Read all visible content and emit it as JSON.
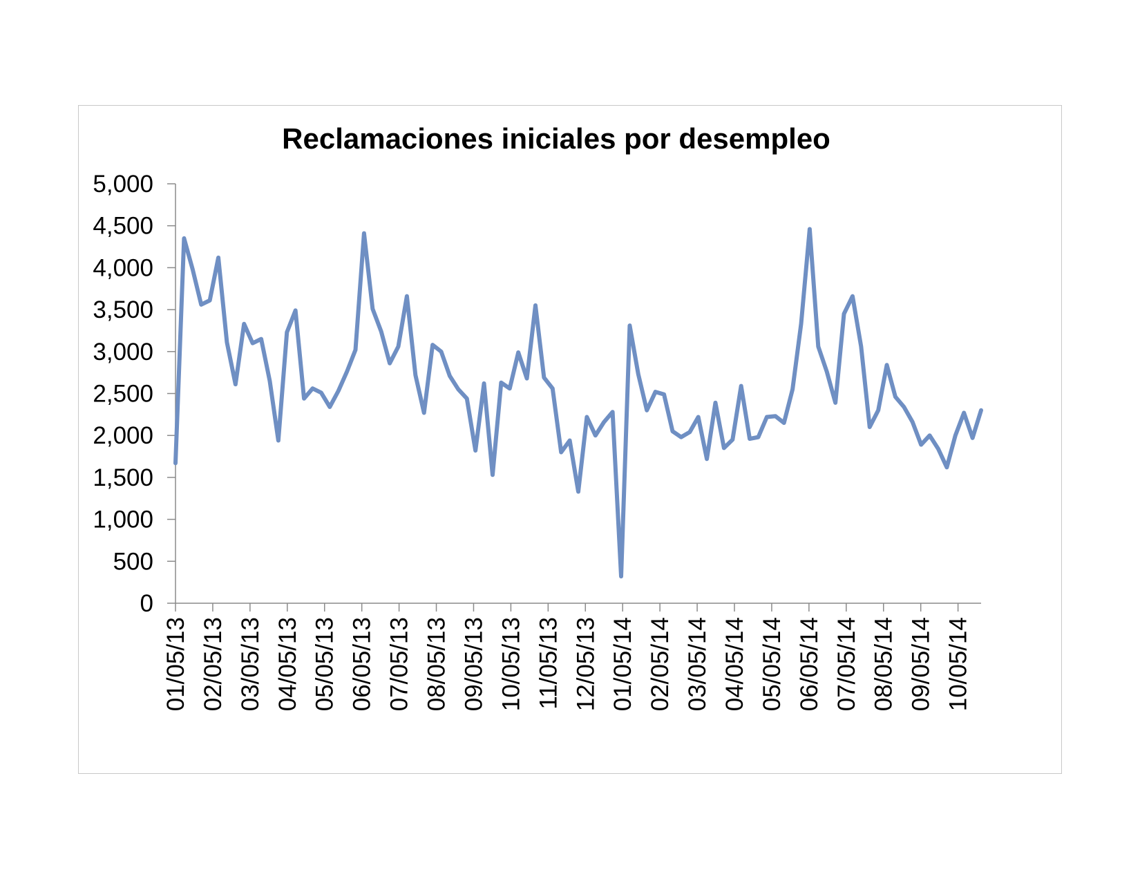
{
  "chart_data": {
    "type": "line",
    "title": "Reclamaciones iniciales por desempleo",
    "xlabel": "",
    "ylabel": "",
    "ylim": [
      0,
      5000
    ],
    "yticks": [
      "0",
      "500",
      "1,000",
      "1,500",
      "2,000",
      "2,500",
      "3,000",
      "3,500",
      "4,000",
      "4,500",
      "5,000"
    ],
    "xticks": [
      "01/05/13",
      "02/05/13",
      "03/05/13",
      "04/05/13",
      "05/05/13",
      "06/05/13",
      "07/05/13",
      "08/05/13",
      "09/05/13",
      "10/05/13",
      "11/05/13",
      "12/05/13",
      "01/05/14",
      "02/05/14",
      "03/05/14",
      "04/05/14",
      "05/05/14",
      "06/05/14",
      "07/05/14",
      "08/05/14",
      "09/05/14",
      "10/05/14"
    ],
    "grid": false,
    "legend": "none",
    "line_color": "#6f8fc3",
    "axis_color": "#8a8a8a",
    "series": [
      {
        "values": [
          1670,
          4350,
          3980,
          3560,
          3610,
          4120,
          3110,
          2610,
          3330,
          3100,
          3150,
          2650,
          1940,
          3230,
          3490,
          2440,
          2560,
          2510,
          2340,
          2530,
          2760,
          3020,
          4410,
          3510,
          3240,
          2860,
          3060,
          3660,
          2720,
          2270,
          3080,
          3000,
          2710,
          2550,
          2440,
          1820,
          2620,
          1530,
          2630,
          2560,
          2990,
          2680,
          3550,
          2690,
          2560,
          1800,
          1940,
          1330,
          2220,
          2000,
          2160,
          2280,
          320,
          3310,
          2730,
          2300,
          2520,
          2490,
          2050,
          1980,
          2040,
          2220,
          1720,
          2390,
          1850,
          1950,
          2590,
          1960,
          1980,
          2220,
          2230,
          2150,
          2550,
          3330,
          4460,
          3060,
          2760,
          2390,
          3450,
          3660,
          3060,
          2100,
          2300,
          2840,
          2460,
          2340,
          2160,
          1890,
          2000,
          1840,
          1620,
          2000,
          2270,
          1970,
          2300
        ]
      }
    ]
  }
}
